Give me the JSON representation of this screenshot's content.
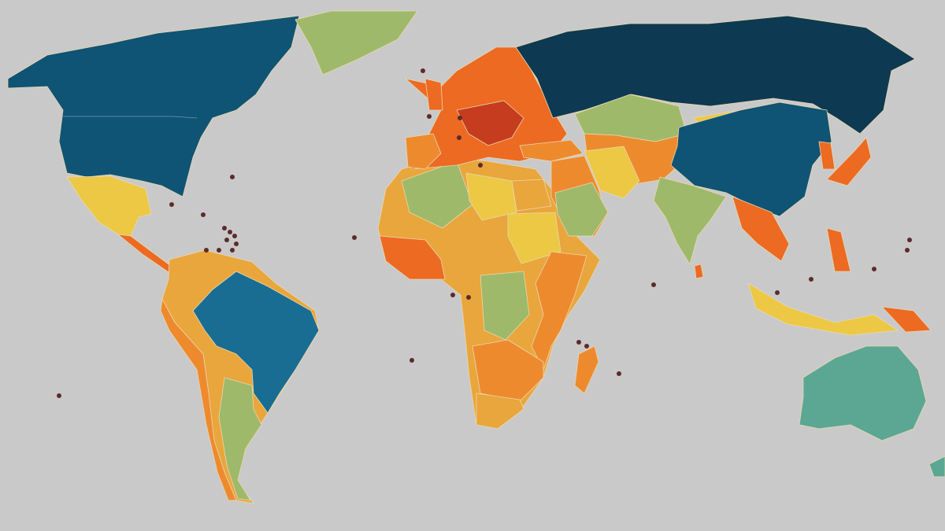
{
  "map": {
    "background": "#c9c9c9",
    "palette": {
      "darkest_blue": "#0d3a52",
      "dark_blue": "#0f5474",
      "blue": "#1a6d92",
      "teal": "#5ba793",
      "green": "#9fb96a",
      "yellow": "#ecc844",
      "light_orange": "#e9a63c",
      "orange": "#ee8a2e",
      "dark_orange": "#ec6a22",
      "red": "#c63c1e",
      "dot": "#5b2b2b"
    },
    "region_fills": {
      "north-america": "dark_blue",
      "greenland": "green",
      "mexico-central-america": "yellow",
      "central-america-south": "dark_orange",
      "south-america": "light_orange",
      "andes": "orange",
      "brazil": "blue",
      "argentina": "green",
      "africa": "light_orange",
      "west-africa": "dark_orange",
      "algeria": "green",
      "libya": "yellow",
      "sudan-chad": "yellow",
      "egypt": "light_orange",
      "congo": "green",
      "east-africa": "orange",
      "southern-africa": "orange",
      "south-africa": "light_orange",
      "madagascar": "orange",
      "europe": "dark_orange",
      "central-europe": "red",
      "iberia": "orange",
      "russia": "darkest_blue",
      "kazakhstan": "green",
      "central-asia": "orange",
      "middle-east": "orange",
      "turkey": "orange",
      "saudi-arabia": "green",
      "iran": "yellow",
      "mongolia": "yellow",
      "china": "dark_blue",
      "india": "green",
      "southeast-asia": "dark_orange",
      "indonesia": "yellow",
      "papua": "dark_orange",
      "japan": "dark_orange",
      "korea": "dark_orange",
      "philippines": "dark_orange",
      "sri-lanka": "dark_orange",
      "uk": "dark_orange",
      "australia": "teal",
      "new-zealand": "teal"
    }
  }
}
